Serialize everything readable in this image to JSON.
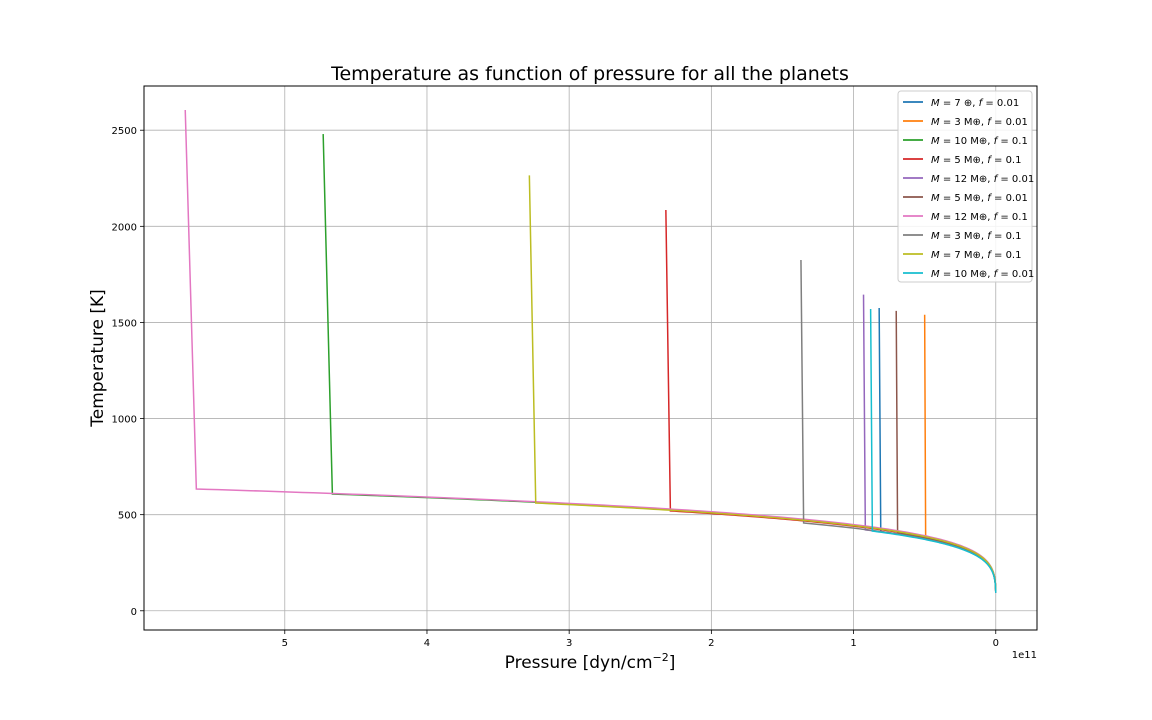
{
  "chart_data": {
    "type": "line",
    "title": "Temperature as function of pressure for all the planets",
    "xlabel": "Pressure [dyn/cm",
    "xlabel_sup": "−2",
    "xlabel_end": "]",
    "ylabel": "Temperature [K]",
    "x_offset_label": "1e11",
    "x_axis_inverted": true,
    "xlim": [
      5.99,
      -0.29
    ],
    "ylim": [
      -100,
      2730
    ],
    "xticks": [
      5,
      4,
      3,
      2,
      1,
      0
    ],
    "yticks": [
      0,
      500,
      1000,
      1500,
      2000,
      2500
    ],
    "grid": true,
    "legend_position": "upper right",
    "series": [
      {
        "name": "M = 7 ⊕, f = 0.01",
        "legend": {
          "m": "7 ⊕",
          "f": "0.01"
        },
        "color": "#1f77b4",
        "p_end": 0.82,
        "t_end": 1575,
        "scale": 1.0
      },
      {
        "name": "M = 3 M⊕, f = 0.01",
        "legend": {
          "m": "3 M⊕",
          "f": "0.01"
        },
        "color": "#ff7f0e",
        "p_end": 0.5,
        "t_end": 1540,
        "scale": 1.035
      },
      {
        "name": "M = 10 M⊕, f = 0.1",
        "legend": {
          "m": "10 M⊕",
          "f": "0.1"
        },
        "color": "#2ca02c",
        "p_end": 4.73,
        "t_end": 2480,
        "scale": 1.038
      },
      {
        "name": "M = 5 M⊕, f = 0.1",
        "legend": {
          "m": "5 M⊕",
          "f": "0.1"
        },
        "color": "#d62728",
        "p_end": 2.32,
        "t_end": 2085,
        "scale": 1.024
      },
      {
        "name": "M = 12 M⊕, f = 0.01",
        "legend": {
          "m": "12 M⊕",
          "f": "0.01"
        },
        "color": "#9467bd",
        "p_end": 0.93,
        "t_end": 1645,
        "scale": 0.996
      },
      {
        "name": "M = 5 M⊕, f = 0.01",
        "legend": {
          "m": "5 M⊕",
          "f": "0.01"
        },
        "color": "#8c564b",
        "p_end": 0.7,
        "t_end": 1560,
        "scale": 1.018
      },
      {
        "name": "M = 12 M⊕, f = 0.1",
        "legend": {
          "m": "12 M⊕",
          "f": "0.1"
        },
        "color": "#e377c2",
        "p_end": 5.7,
        "t_end": 2605,
        "scale": 1.043
      },
      {
        "name": "M = 3 M⊕, f = 0.1",
        "legend": {
          "m": "3 M⊕",
          "f": "0.1"
        },
        "color": "#7f7f7f",
        "p_end": 1.37,
        "t_end": 1825,
        "scale": 1.0
      },
      {
        "name": "M = 7 M⊕, f = 0.1",
        "legend": {
          "m": "7 M⊕",
          "f": "0.1"
        },
        "color": "#bcbd22",
        "p_end": 3.28,
        "t_end": 2265,
        "scale": 1.031
      },
      {
        "name": "M = 10 M⊕, f = 0.01",
        "legend": {
          "m": "10 M⊕",
          "f": "0.01"
        },
        "color": "#17becf",
        "p_end": 0.88,
        "t_end": 1570,
        "scale": 0.992
      }
    ]
  }
}
